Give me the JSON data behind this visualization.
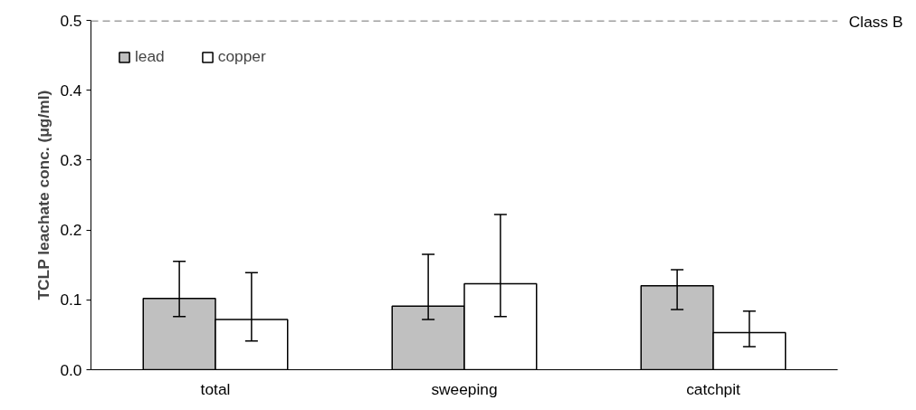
{
  "chart_data": {
    "type": "bar",
    "ylabel": "TCLP leachate conc. (μg/ml)",
    "categories": [
      "total",
      "sweeping",
      "catchpit"
    ],
    "series": [
      {
        "name": "lead",
        "color": "#c0c0c0",
        "values": [
          0.102,
          0.091,
          0.12
        ],
        "errors": [
          [
            0.076,
            0.155
          ],
          [
            0.072,
            0.165
          ],
          [
            0.086,
            0.143
          ]
        ]
      },
      {
        "name": "copper",
        "color": "#ffffff",
        "values": [
          0.072,
          0.123,
          0.053
        ],
        "errors": [
          [
            0.041,
            0.139
          ],
          [
            0.076,
            0.222
          ],
          [
            0.033,
            0.084
          ]
        ]
      }
    ],
    "ylim": [
      0,
      0.5
    ],
    "yticks": [
      {
        "value": 0,
        "label": "0.0"
      },
      0.1,
      0.2,
      0.3,
      0.4,
      0.5
    ],
    "ref_lines": [
      {
        "axis": "y",
        "value": 0.5,
        "label": "Class B",
        "color": "#a0a0a0",
        "line_style": "dashed"
      }
    ],
    "grid": false,
    "legend": "top left"
  }
}
